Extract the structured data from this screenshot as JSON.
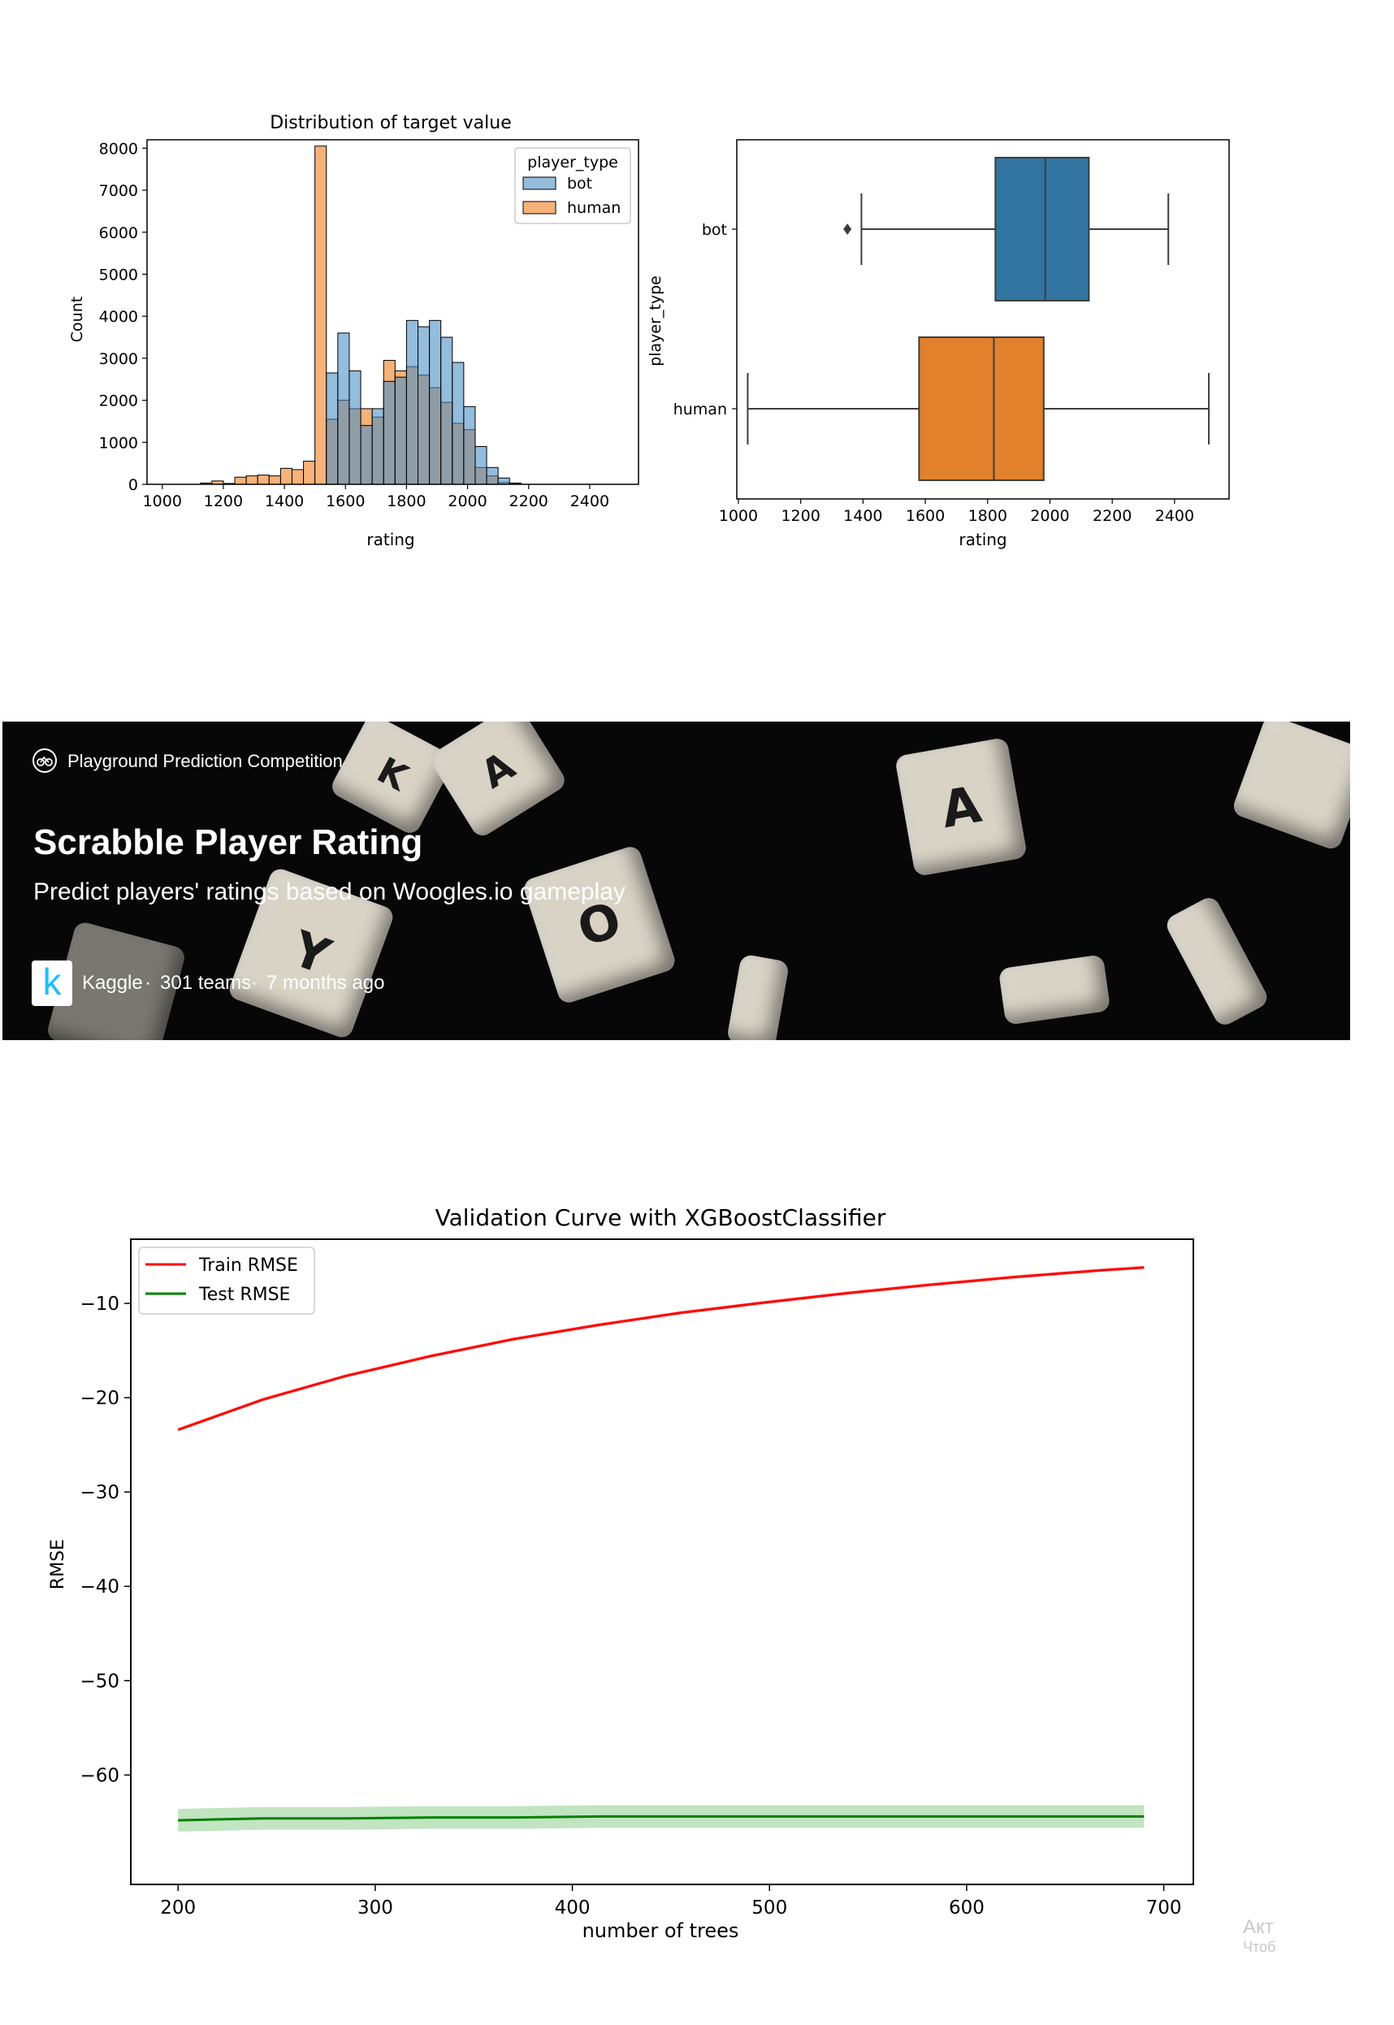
{
  "banner": {
    "category": "Playground Prediction Competition",
    "title": "Scrabble Player Rating",
    "subtitle": "Predict players' ratings based on Woogles.io gameplay",
    "host": "Kaggle",
    "teams": "301 teams",
    "age": "7 months ago",
    "separator": "·",
    "logo_letter": "k",
    "tile_letters": [
      "K",
      "A",
      "Y",
      "O",
      "A"
    ]
  },
  "watermark": {
    "line1": "Акт",
    "line2": "Чтоб"
  },
  "chart_data": [
    {
      "type": "histogram",
      "title": "Distribution of target value",
      "xlabel": "rating",
      "ylabel": "Count",
      "xlim": [
        950,
        2560
      ],
      "ylim": [
        0,
        8200
      ],
      "xticks": [
        1000,
        1200,
        1400,
        1600,
        1800,
        2000,
        2200,
        2400
      ],
      "yticks": [
        0,
        1000,
        2000,
        3000,
        4000,
        5000,
        6000,
        7000,
        8000
      ],
      "bin_start": 1125,
      "bin_width": 37.5,
      "legend": {
        "title": "player_type",
        "position": "upper right"
      },
      "series": [
        {
          "name": "bot",
          "color": "#4c8fc5",
          "values": [
            0,
            0,
            0,
            0,
            0,
            0,
            0,
            0,
            0,
            0,
            0,
            2650,
            3600,
            2700,
            1400,
            1800,
            2450,
            2550,
            3900,
            3750,
            3900,
            3500,
            2900,
            1850,
            900,
            400,
            150,
            30
          ]
        },
        {
          "name": "human",
          "color": "#f6a461",
          "values": [
            30,
            80,
            20,
            170,
            200,
            220,
            200,
            380,
            350,
            550,
            8050,
            1550,
            2000,
            1800,
            1800,
            1600,
            2950,
            2700,
            2800,
            2600,
            2300,
            1950,
            1450,
            1300,
            400,
            200,
            40,
            10
          ]
        }
      ]
    },
    {
      "type": "box",
      "xlabel": "rating",
      "ylabel": "player_type",
      "xlim": [
        995,
        2575
      ],
      "xticks": [
        1000,
        1200,
        1400,
        1600,
        1800,
        2000,
        2200,
        2400
      ],
      "categories": [
        "bot",
        "human"
      ],
      "boxes": [
        {
          "name": "bot",
          "color": "#3274a1",
          "whisker_low": 1395,
          "q1": 1825,
          "median": 1985,
          "q3": 2125,
          "whisker_high": 2380,
          "outliers": [
            1350
          ]
        },
        {
          "name": "human",
          "color": "#e1812c",
          "whisker_low": 1030,
          "q1": 1580,
          "median": 1820,
          "q3": 1980,
          "whisker_high": 2510,
          "outliers": []
        }
      ]
    },
    {
      "type": "line",
      "title": "Validation Curve with XGBoostClassifier",
      "xlabel": "number of trees",
      "ylabel": "RMSE",
      "xlim": [
        176,
        715
      ],
      "ylim": [
        -71.6,
        -3.2
      ],
      "xticks": [
        200,
        300,
        400,
        500,
        600,
        700
      ],
      "yticks": [
        -10,
        -20,
        -30,
        -40,
        -50,
        -60
      ],
      "legend_position": "upper left",
      "x": [
        200,
        243,
        285,
        328,
        370,
        413,
        455,
        498,
        540,
        583,
        625,
        668,
        690
      ],
      "series": [
        {
          "name": "Train RMSE",
          "color": "#ff0000",
          "values": [
            -23.4,
            -20.2,
            -17.7,
            -15.6,
            -13.8,
            -12.3,
            -11.0,
            -9.9,
            -8.9,
            -8.0,
            -7.2,
            -6.5,
            -6.2
          ],
          "band": 0.2
        },
        {
          "name": "Test RMSE",
          "color": "#008000",
          "values": [
            -64.8,
            -64.6,
            -64.6,
            -64.5,
            -64.5,
            -64.4,
            -64.4,
            -64.4,
            -64.4,
            -64.4,
            -64.4,
            -64.4,
            -64.4
          ],
          "band": 1.2,
          "band_color": "#a6d9a6"
        }
      ]
    }
  ]
}
